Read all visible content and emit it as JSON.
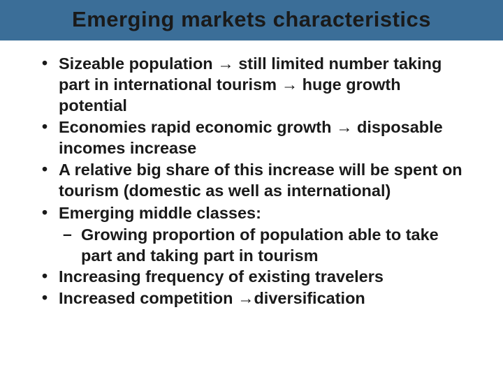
{
  "slide": {
    "title": "Emerging markets  characteristics",
    "title_bar_color": "#3b6e98",
    "title_text_color": "#1a1a1a",
    "background_color": "#ffffff",
    "body_text_color": "#1a1a1a",
    "title_fontsize": 31,
    "body_fontsize": 23.5,
    "arrow_glyph": "→",
    "bullets": [
      {
        "text": "Sizeable population → still limited number taking part in international tourism → huge growth potential"
      },
      {
        "text": "Economies rapid economic growth → disposable incomes increase"
      },
      {
        "text": "A relative big share of this increase will be spent on tourism (domestic as well as international)"
      },
      {
        "text": "Emerging middle classes:",
        "sub": [
          "Growing proportion of population able to take part and taking part in tourism"
        ]
      },
      {
        "text": "Increasing frequency of existing travelers"
      },
      {
        "text": "Increased competition →diversification"
      }
    ]
  }
}
